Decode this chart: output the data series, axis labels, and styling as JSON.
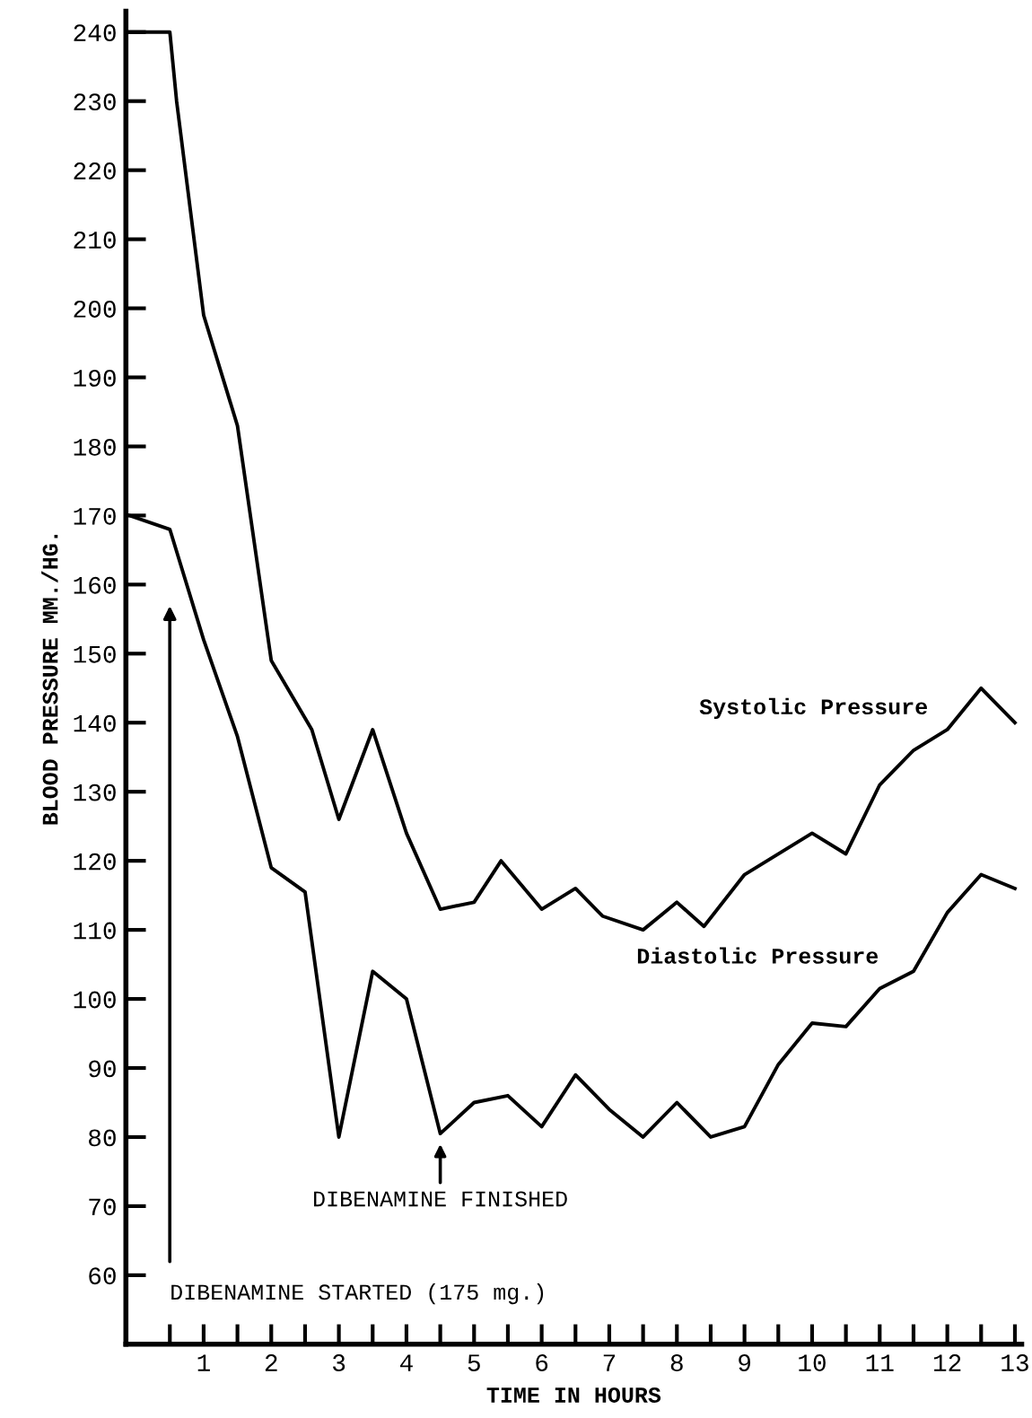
{
  "chart_data": {
    "type": "line",
    "xlabel": "TIME IN HOURS",
    "ylabel": "BLOOD PRESSURE MM./HG.",
    "xlim": [
      -0.15,
      13.1
    ],
    "ylim": [
      50,
      243
    ],
    "xticks": [
      {
        "value": 0.5,
        "label": null
      },
      1,
      {
        "value": 1.5,
        "label": null
      },
      2,
      {
        "value": 2.5,
        "label": null
      },
      3,
      {
        "value": 3.5,
        "label": null
      },
      4,
      {
        "value": 4.5,
        "label": null
      },
      5,
      {
        "value": 5.5,
        "label": null
      },
      6,
      {
        "value": 6.5,
        "label": null
      },
      7,
      {
        "value": 7.5,
        "label": null
      },
      8,
      {
        "value": 8.5,
        "label": null
      },
      9,
      {
        "value": 9.5,
        "label": null
      },
      10,
      {
        "value": 10.5,
        "label": null
      },
      11,
      {
        "value": 11.5,
        "label": null
      },
      12,
      {
        "value": 12.5,
        "label": null
      },
      13
    ],
    "yticks": [
      60,
      70,
      80,
      90,
      100,
      110,
      120,
      130,
      140,
      150,
      160,
      170,
      180,
      190,
      200,
      210,
      220,
      230,
      240
    ],
    "grid": false,
    "legend": false,
    "marker": "none",
    "line_style": "solid",
    "series": [
      {
        "name": "Systolic Pressure",
        "color": "#000000",
        "x": [
          -0.1,
          0.5,
          0.6,
          1,
          1.5,
          2,
          2.6,
          3,
          3.5,
          4,
          4.5,
          5,
          5.4,
          6,
          6.5,
          6.9,
          7.5,
          8,
          8.4,
          9,
          10,
          10.5,
          11,
          11.5,
          12,
          12.5,
          13
        ],
        "values": [
          240,
          240,
          230,
          199,
          183,
          149,
          139,
          126,
          139,
          124,
          113,
          114,
          120,
          113,
          116,
          112,
          110,
          114,
          110.5,
          118,
          124,
          121,
          131,
          136,
          139,
          145,
          140
        ]
      },
      {
        "name": "Diastolic Pressure",
        "color": "#000000",
        "x": [
          -0.1,
          0.5,
          1,
          1.5,
          2,
          2.5,
          3,
          3.5,
          4,
          4.5,
          5,
          5.5,
          6,
          6.5,
          7,
          7.5,
          8,
          8.5,
          9,
          9.5,
          10,
          10.5,
          11,
          11.5,
          12,
          12.5,
          13
        ],
        "values": [
          170,
          168,
          152,
          138,
          119,
          115.5,
          80,
          104,
          100,
          80.5,
          85,
          86,
          81.5,
          89,
          84,
          80,
          85,
          80,
          81.5,
          90.5,
          96.5,
          96,
          101.5,
          104,
          112.5,
          118,
          116
        ]
      }
    ],
    "annotations": [
      "DIBENAMINE STARTED (175 mg.)",
      {
        "text": "DIBENAMINE FINISHED",
        "x": 4.5,
        "y": 79
      }
    ]
  }
}
